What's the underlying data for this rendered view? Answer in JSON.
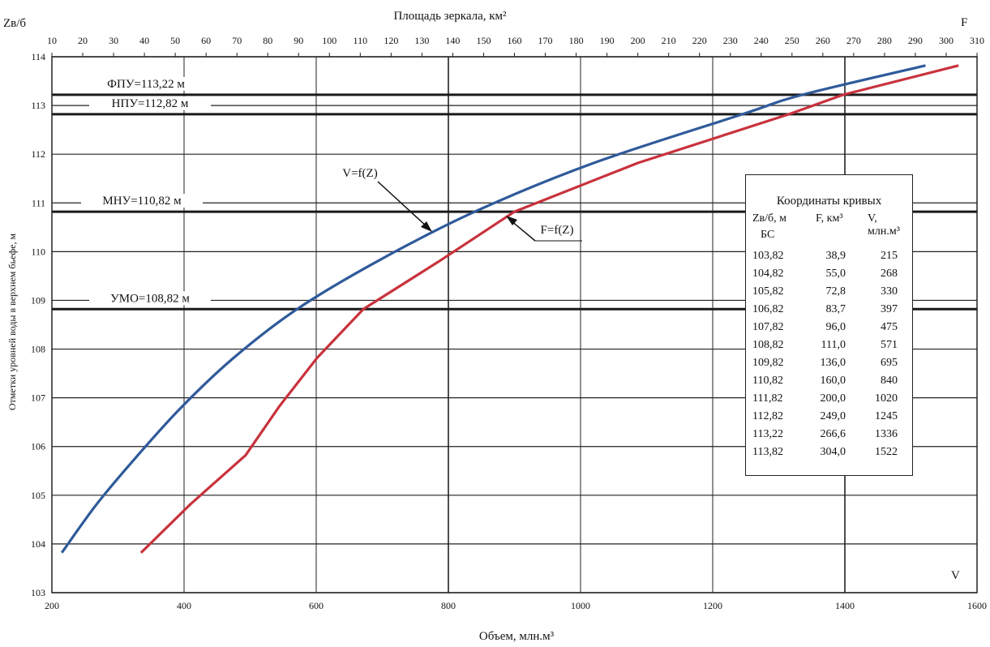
{
  "chart_data": {
    "type": "line",
    "title": "",
    "top_axis_label": "Площадь зеркала, км²",
    "xlabel": "Объем, млн.м³",
    "ylabel": "Отметки уровней воды в верхнем бьефе, м",
    "y_axis_title": "Zв/б",
    "top_axis_corner_label": "F",
    "bottom_axis_corner_label": "V",
    "x_range": [
      200,
      1600
    ],
    "x_ticks": [
      200,
      400,
      600,
      800,
      1000,
      1200,
      1400,
      1600
    ],
    "top_range": [
      10,
      310
    ],
    "top_ticks": [
      10,
      20,
      30,
      40,
      50,
      60,
      70,
      80,
      90,
      100,
      110,
      120,
      130,
      140,
      150,
      160,
      170,
      180,
      190,
      200,
      210,
      220,
      230,
      240,
      250,
      260,
      270,
      280,
      290,
      300,
      310
    ],
    "y_range": [
      103,
      114
    ],
    "y_ticks": [
      103,
      104,
      105,
      106,
      107,
      108,
      109,
      110,
      111,
      112,
      113,
      114
    ],
    "levels": [
      {
        "label": "ФПУ=113,22 м",
        "z": 113.22
      },
      {
        "label": "НПУ=112,82 м",
        "z": 112.82
      },
      {
        "label": "МНУ=110,82 м",
        "z": 110.82
      },
      {
        "label": "УМО=108,82 м",
        "z": 108.82
      }
    ],
    "series": [
      {
        "name": "V=f(Z)",
        "axis": "bottom",
        "color": "#2f5a9a",
        "z": [
          103.82,
          104.82,
          105.82,
          106.82,
          107.82,
          108.82,
          109.82,
          110.82,
          111.82,
          112.82,
          113.22,
          113.82
        ],
        "values": [
          215,
          268,
          330,
          397,
          475,
          571,
          695,
          840,
          1020,
          1245,
          1336,
          1522
        ]
      },
      {
        "name": "F=f(Z)",
        "axis": "top",
        "color": "#c8323c",
        "z": [
          103.82,
          104.82,
          105.82,
          106.82,
          107.82,
          108.82,
          109.82,
          110.82,
          111.82,
          112.82,
          113.22,
          113.82
        ],
        "values": [
          38.9,
          55.0,
          72.8,
          83.7,
          96.0,
          111.0,
          136.0,
          160.0,
          200.0,
          249.0,
          266.6,
          304.0
        ]
      }
    ],
    "table": {
      "title": "Координаты кривых",
      "headers": {
        "z": "Zв/б, м",
        "z_sub": "БС",
        "f": "F, км³",
        "v": "V, млн.м³"
      },
      "rows": [
        {
          "z": "103,82",
          "f": "38,9",
          "v": "215"
        },
        {
          "z": "104,82",
          "f": "55,0",
          "v": "268"
        },
        {
          "z": "105,82",
          "f": "72,8",
          "v": "330"
        },
        {
          "z": "106,82",
          "f": "83,7",
          "v": "397"
        },
        {
          "z": "107,82",
          "f": "96,0",
          "v": "475"
        },
        {
          "z": "108,82",
          "f": "111,0",
          "v": "571"
        },
        {
          "z": "109,82",
          "f": "136,0",
          "v": "695"
        },
        {
          "z": "110,82",
          "f": "160,0",
          "v": "840"
        },
        {
          "z": "111,82",
          "f": "200,0",
          "v": "1020"
        },
        {
          "z": "112,82",
          "f": "249,0",
          "v": "1245"
        },
        {
          "z": "113,22",
          "f": "266,6",
          "v": "1336"
        },
        {
          "z": "113,82",
          "f": "304,0",
          "v": "1522"
        }
      ]
    }
  }
}
